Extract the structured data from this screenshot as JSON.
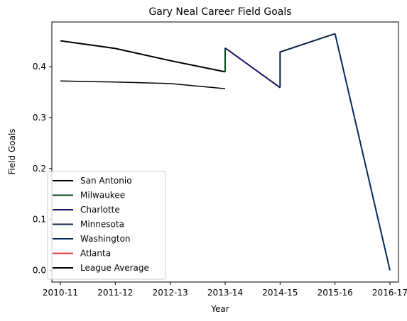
{
  "chart_data": {
    "type": "line",
    "title": "Gary Neal Career Field Goals",
    "xlabel": "Year",
    "ylabel": "Field Goals",
    "categories": [
      "2010-11",
      "2011-12",
      "2012-13",
      "2013-14",
      "2014-15",
      "2015-16",
      "2016-17"
    ],
    "ylim": [
      -0.023,
      0.488
    ],
    "yticks": [
      0.0,
      0.1,
      0.2,
      0.3,
      0.4
    ],
    "ytick_labels": [
      "0.0",
      "0.1",
      "0.2",
      "0.3",
      "0.4"
    ],
    "grid": false,
    "legend_position": "lower-left",
    "series": [
      {
        "name": "San Antonio",
        "color": "#000000",
        "x": [
          0,
          1,
          2,
          3
        ],
        "y": [
          0.451,
          0.436,
          0.412,
          0.39
        ]
      },
      {
        "name": "Milwaukee",
        "color": "#00471B",
        "x": [
          3,
          3
        ],
        "y": [
          0.39,
          0.437
        ]
      },
      {
        "name": "Charlotte",
        "color": "#1D1160",
        "x": [
          3,
          4
        ],
        "y": [
          0.437,
          0.359
        ]
      },
      {
        "name": "Minnesota",
        "color": "#0C2340",
        "x": [
          4,
          4,
          5
        ],
        "y": [
          0.359,
          0.429,
          0.465
        ]
      },
      {
        "name": "Washington",
        "color": "#002B5C",
        "x": [
          5,
          6
        ],
        "y": [
          0.465,
          0.0
        ]
      },
      {
        "name": "Atlanta",
        "color": "#E03A3E",
        "x": [
          6
        ],
        "y": [
          0.0
        ]
      },
      {
        "name": "League Average",
        "color": "#000000",
        "thin": true,
        "x": [
          0,
          1,
          2,
          3
        ],
        "y": [
          0.372,
          0.37,
          0.367,
          0.357
        ]
      }
    ]
  }
}
